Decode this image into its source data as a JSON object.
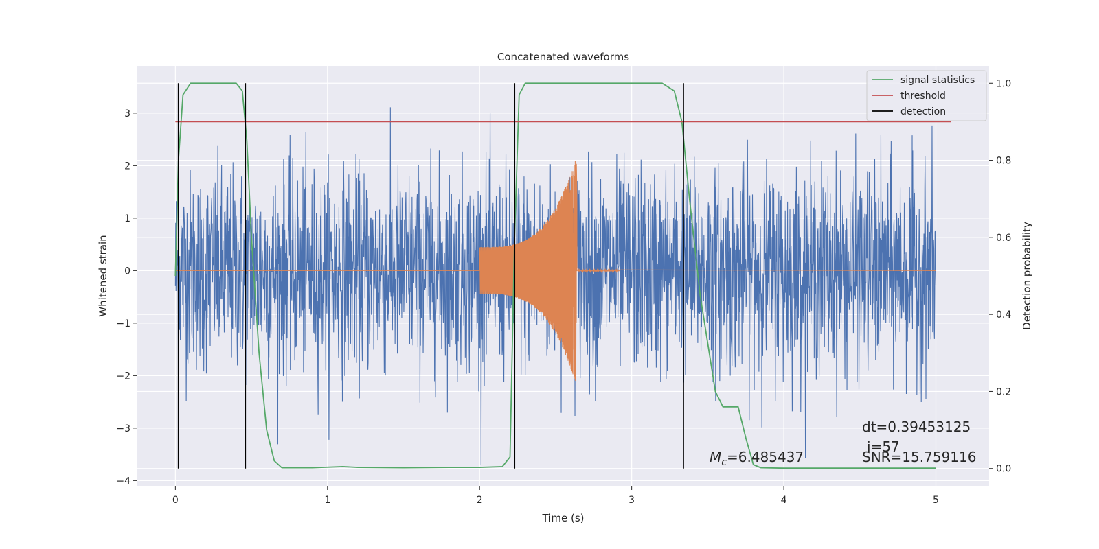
{
  "chart_data": {
    "type": "line",
    "title": "Concatenated waveforms",
    "xlabel": "Time (s)",
    "ylabel": "Whitened strain",
    "ylabel_right": "Detection probability",
    "xlim": [
      -0.25,
      5.35
    ],
    "ylim": [
      -4.1,
      3.9
    ],
    "ylim_right": [
      -0.045,
      1.045
    ],
    "xticks": [
      "0",
      "1",
      "2",
      "3",
      "4",
      "5"
    ],
    "yticks": [
      "3",
      "2",
      "1",
      "0",
      "−1",
      "−2",
      "−3",
      "−4"
    ],
    "yticks_right": [
      "1.0",
      "0.8",
      "0.6",
      "0.4",
      "0.2",
      "0.0"
    ],
    "grid": true,
    "legend_position": "top-right",
    "series": [
      {
        "name": "",
        "color": "#4c72b0",
        "description_range": "noisy whitened strain from 0 to 5 s, mostly within -2.4..2.4 with peaks to ~3.6"
      },
      {
        "name": "",
        "color": "#dd8452",
        "chirp_start": 2.0,
        "chirp_end": 2.64,
        "amplitude_start": 0.45,
        "amplitude_peak": 2.1
      },
      {
        "name": "signal statistics",
        "color": "#55a868",
        "axis": "right",
        "x": [
          0.0,
          0.02,
          0.05,
          0.1,
          0.2,
          0.4,
          0.44,
          0.47,
          0.5,
          0.55,
          0.6,
          0.65,
          0.7,
          0.9,
          1.1,
          1.2,
          1.5,
          1.8,
          2.0,
          2.15,
          2.2,
          2.23,
          2.26,
          2.3,
          2.4,
          3.2,
          3.28,
          3.33,
          3.38,
          3.45,
          3.55,
          3.6,
          3.65,
          3.7,
          3.75,
          3.8,
          3.85,
          4.0,
          4.5,
          5.0
        ],
        "y": [
          0.5,
          0.8,
          0.97,
          1.0,
          1.0,
          1.0,
          0.98,
          0.85,
          0.6,
          0.3,
          0.1,
          0.02,
          0.002,
          0.002,
          0.005,
          0.003,
          0.002,
          0.003,
          0.003,
          0.005,
          0.03,
          0.6,
          0.97,
          1.0,
          1.0,
          1.0,
          0.98,
          0.9,
          0.7,
          0.45,
          0.2,
          0.16,
          0.16,
          0.16,
          0.08,
          0.01,
          0.002,
          0.001,
          0.001,
          0.001
        ]
      },
      {
        "name": "threshold",
        "color": "#c44e52",
        "axis": "right",
        "x": [
          0.0,
          5.1
        ],
        "y": [
          0.9,
          0.9
        ]
      },
      {
        "name": "detection",
        "color": "#000000",
        "axis": "right",
        "vlines": [
          0.02,
          0.46,
          2.23,
          3.34
        ]
      }
    ],
    "annotations": {
      "mc_value": "=6.485437",
      "dt": "dt=0.39453125",
      "i": "i=57",
      "snr": "SNR=15.759116"
    }
  }
}
